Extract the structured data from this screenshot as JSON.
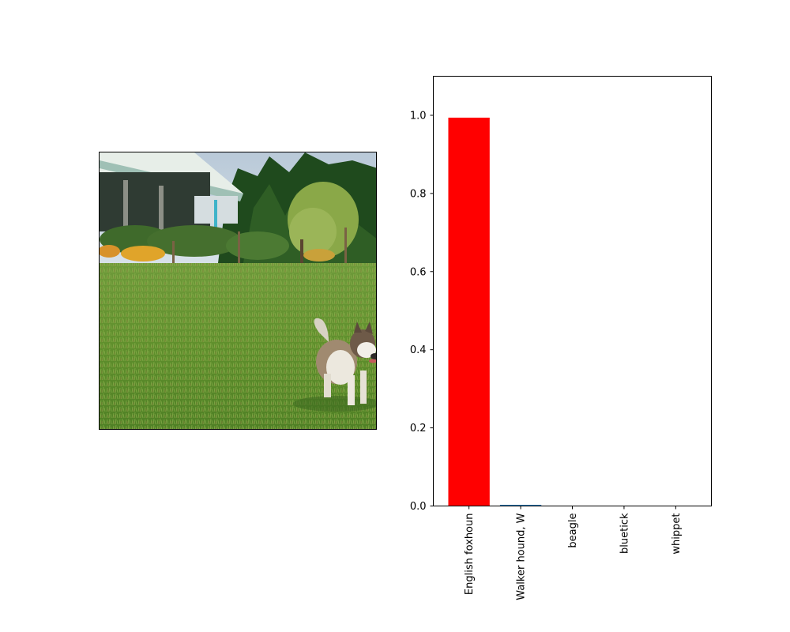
{
  "photo": {
    "description_icon": "photo-of-husky-dog-on-lawn-icon"
  },
  "chart_data": {
    "type": "bar",
    "categories": [
      "English foxhoun",
      "Walker hound, W",
      "beagle",
      "bluetick",
      "whippet"
    ],
    "values": [
      0.994,
      0.003,
      0.001,
      0.001,
      0.0005
    ],
    "bar_colors": [
      "#ff0000",
      "#1f77b4",
      "#1f77b4",
      "#1f77b4",
      "#1f77b4"
    ],
    "ylim": [
      0,
      1.1
    ],
    "yticks": [
      0.0,
      0.2,
      0.4,
      0.6,
      0.8,
      1.0
    ],
    "ytick_labels": [
      "0.0",
      "0.2",
      "0.4",
      "0.6",
      "0.8",
      "1.0"
    ],
    "title": "",
    "xlabel": "",
    "ylabel": "",
    "grid": false
  }
}
